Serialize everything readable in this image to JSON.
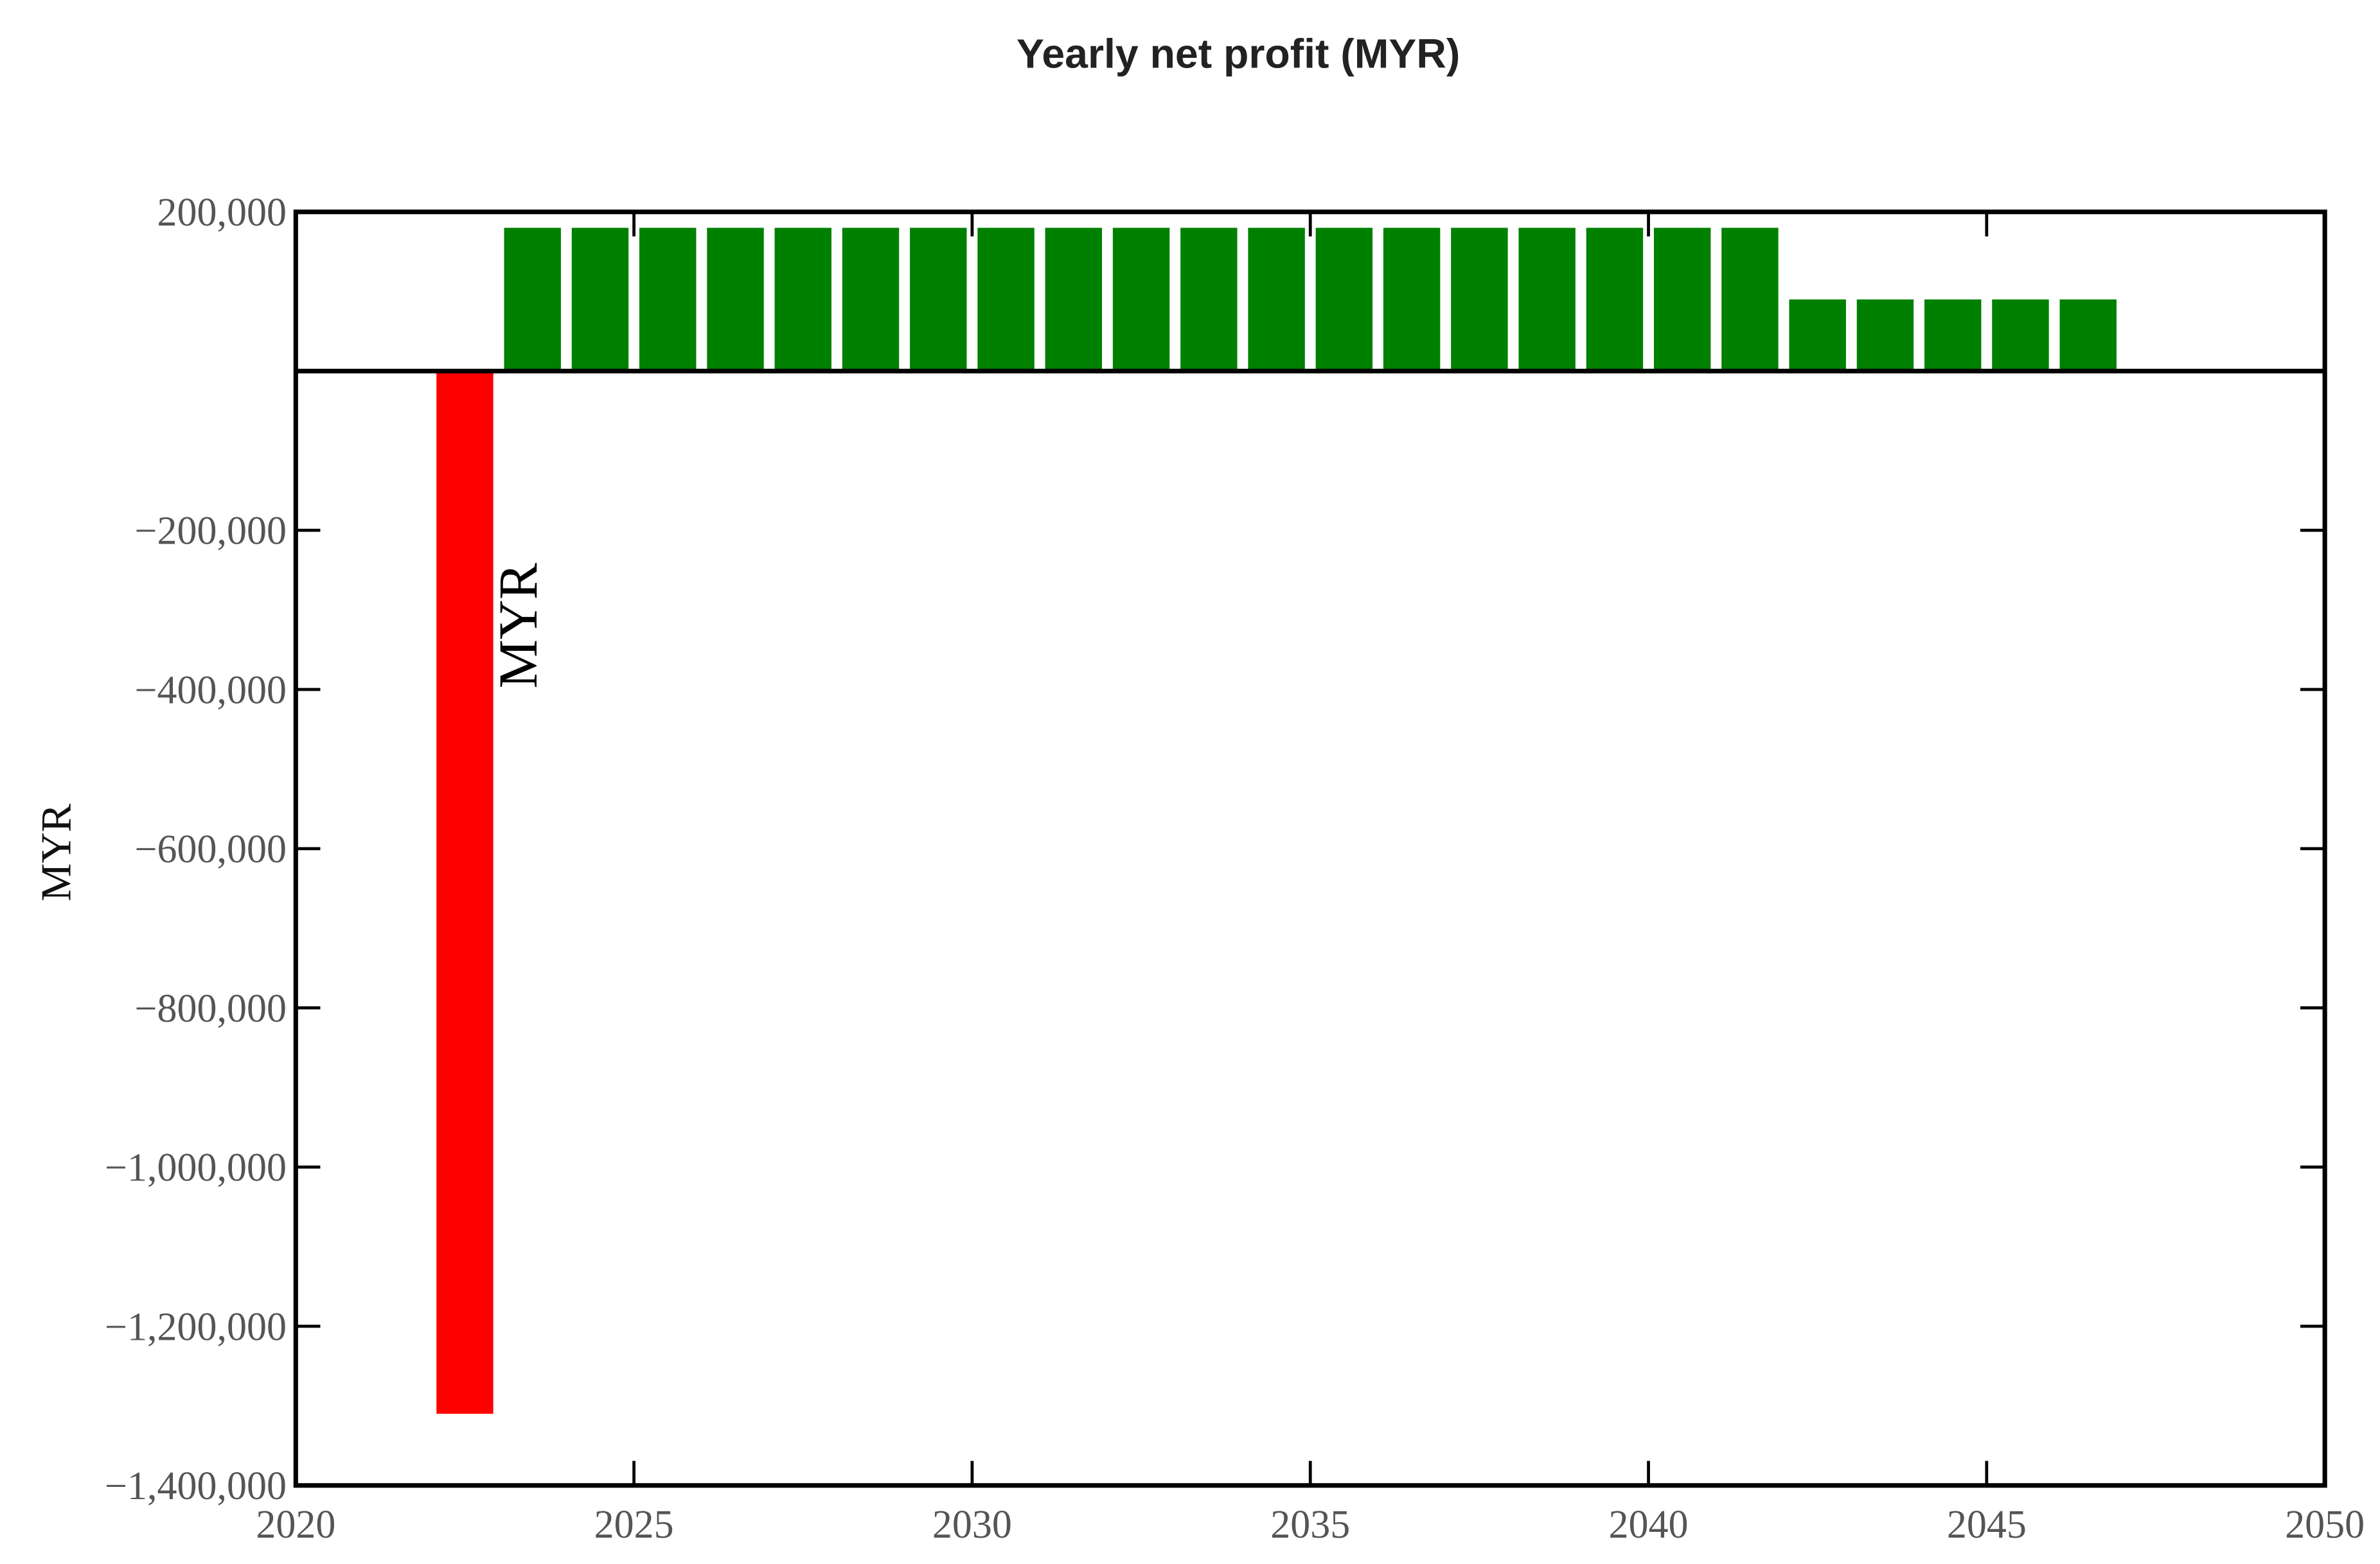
{
  "chart_data": {
    "type": "bar",
    "title": "Yearly net profit (MYR)",
    "ylabel": "MYR",
    "annotations": [
      {
        "text": "MYR"
      }
    ],
    "x": [
      2022,
      2023,
      2024,
      2025,
      2026,
      2027,
      2028,
      2029,
      2030,
      2031,
      2032,
      2033,
      2034,
      2035,
      2036,
      2037,
      2038,
      2039,
      2040,
      2041,
      2042,
      2043,
      2044,
      2045,
      2046
    ],
    "values": [
      -1310000,
      180000,
      180000,
      180000,
      180000,
      180000,
      180000,
      180000,
      180000,
      180000,
      180000,
      180000,
      180000,
      180000,
      180000,
      180000,
      180000,
      180000,
      180000,
      180000,
      90000,
      90000,
      90000,
      90000,
      90000
    ],
    "color_positive": "#008000",
    "color_negative": "#ff0000",
    "xlim": [
      2020,
      2050
    ],
    "xticks": [
      2020,
      2025,
      2030,
      2035,
      2040,
      2045,
      2050
    ],
    "ylim": [
      -1400000,
      200000
    ],
    "yticks": [
      {
        "value": 200000,
        "label": "200,000"
      },
      {
        "value": -200000,
        "label": "−200,000"
      },
      {
        "value": -400000,
        "label": "−400,000"
      },
      {
        "value": -600000,
        "label": "−600,000"
      },
      {
        "value": -800000,
        "label": "−800,000"
      },
      {
        "value": -1000000,
        "label": "−1,000,000"
      },
      {
        "value": -1200000,
        "label": "−1,200,000"
      },
      {
        "value": -1400000,
        "label": "−1,400,000"
      }
    ],
    "grid": false
  }
}
